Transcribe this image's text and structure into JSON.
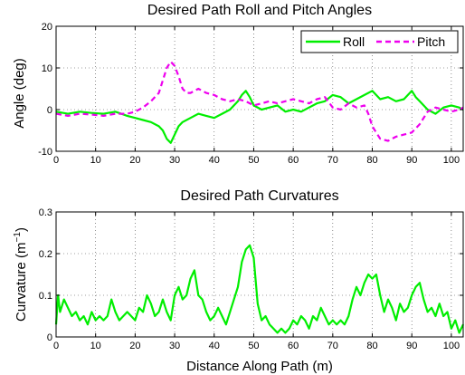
{
  "chart_data": [
    {
      "type": "line",
      "title": "Desired Path Roll and Pitch Angles",
      "xlabel": "",
      "ylabel": "Angle (deg)",
      "xlim": [
        0,
        103
      ],
      "ylim": [
        -10,
        20
      ],
      "xticks": [
        0,
        10,
        20,
        30,
        40,
        50,
        60,
        70,
        80,
        90,
        100
      ],
      "yticks": [
        -10,
        0,
        10,
        20
      ],
      "grid": true,
      "legend": "top-right",
      "series": [
        {
          "name": "Roll",
          "color": "#00ee00",
          "style": "solid",
          "x": [
            0,
            3,
            6,
            9,
            12,
            15,
            18,
            20,
            22,
            24,
            26,
            27,
            28,
            29,
            30,
            31,
            32,
            34,
            36,
            38,
            40,
            42,
            44,
            46,
            47,
            48,
            49,
            50,
            52,
            54,
            56,
            58,
            60,
            62,
            64,
            66,
            68,
            70,
            72,
            74,
            76,
            78,
            80,
            82,
            84,
            86,
            88,
            90,
            91,
            92,
            94,
            96,
            98,
            100,
            102,
            103
          ],
          "y": [
            -0.5,
            -1,
            -0.5,
            -0.8,
            -1,
            -0.5,
            -1.5,
            -2,
            -2.5,
            -3,
            -4,
            -5,
            -7,
            -8,
            -6,
            -4,
            -3,
            -2,
            -1,
            -1.5,
            -2,
            -1,
            0,
            2,
            3.5,
            4.5,
            3,
            1,
            0,
            0.5,
            1,
            -0.5,
            0,
            -0.5,
            0.5,
            1.5,
            2,
            3.5,
            3,
            1.5,
            2.5,
            3.5,
            4.5,
            2.5,
            3,
            2,
            2.5,
            4.5,
            3,
            2,
            0,
            -1,
            0.5,
            1,
            0.5,
            0
          ]
        },
        {
          "name": "Pitch",
          "color": "#ee00ee",
          "style": "dashed",
          "x": [
            0,
            3,
            6,
            9,
            12,
            15,
            18,
            20,
            22,
            24,
            26,
            27,
            28,
            29,
            30,
            31,
            32,
            33,
            34,
            36,
            38,
            40,
            42,
            44,
            46,
            48,
            50,
            52,
            54,
            56,
            58,
            60,
            62,
            64,
            66,
            68,
            70,
            72,
            74,
            76,
            78,
            79,
            80,
            82,
            84,
            86,
            88,
            90,
            92,
            94,
            96,
            98,
            100,
            102,
            103
          ],
          "y": [
            -1,
            -1.5,
            -1,
            -1.2,
            -1.5,
            -1,
            -1,
            -0.5,
            0.5,
            2,
            4,
            7,
            10,
            11.5,
            10.5,
            8,
            5,
            4,
            4,
            5,
            4,
            3.5,
            2.5,
            2,
            2.5,
            2,
            1,
            1.5,
            2,
            1.5,
            2,
            2.5,
            2,
            1.5,
            2.5,
            3,
            0.5,
            0,
            1.5,
            0.5,
            1,
            -1,
            -4,
            -7,
            -7.5,
            -6.5,
            -6,
            -5.5,
            -3.5,
            -0.5,
            0.5,
            0,
            -0.5,
            0,
            0.5
          ]
        }
      ]
    },
    {
      "type": "line",
      "title": "Desired Path Curvatures",
      "xlabel": "Distance Along Path (m)",
      "ylabel_main": "Curvature (m",
      "ylabel_sup": "−1",
      "ylabel_end": ")",
      "xlim": [
        0,
        103
      ],
      "ylim": [
        0,
        0.3
      ],
      "xticks": [
        0,
        10,
        20,
        30,
        40,
        50,
        60,
        70,
        80,
        90,
        100
      ],
      "yticks": [
        0,
        0.1,
        0.2,
        0.3
      ],
      "grid": true,
      "series": [
        {
          "color": "#00ee00",
          "style": "solid",
          "x": [
            0,
            0.5,
            1,
            2,
            3,
            4,
            5,
            6,
            7,
            8,
            9,
            10,
            11,
            12,
            13,
            14,
            15,
            16,
            17,
            18,
            19,
            20,
            21,
            22,
            23,
            24,
            25,
            26,
            27,
            28,
            29,
            30,
            31,
            32,
            33,
            34,
            35,
            36,
            37,
            38,
            39,
            40,
            41,
            42,
            43,
            44,
            45,
            46,
            47,
            48,
            49,
            50,
            51,
            52,
            53,
            54,
            55,
            56,
            57,
            58,
            59,
            60,
            61,
            62,
            63,
            64,
            65,
            66,
            67,
            68,
            69,
            70,
            71,
            72,
            73,
            74,
            75,
            76,
            77,
            78,
            79,
            80,
            81,
            82,
            83,
            84,
            85,
            86,
            87,
            88,
            89,
            90,
            91,
            92,
            93,
            94,
            95,
            96,
            97,
            98,
            99,
            100,
            101,
            102,
            103
          ],
          "y": [
            0.03,
            0.1,
            0.06,
            0.09,
            0.07,
            0.05,
            0.06,
            0.04,
            0.05,
            0.03,
            0.06,
            0.04,
            0.05,
            0.04,
            0.05,
            0.09,
            0.06,
            0.04,
            0.05,
            0.06,
            0.05,
            0.04,
            0.07,
            0.06,
            0.1,
            0.08,
            0.05,
            0.06,
            0.09,
            0.06,
            0.04,
            0.1,
            0.12,
            0.09,
            0.1,
            0.14,
            0.16,
            0.1,
            0.09,
            0.06,
            0.04,
            0.05,
            0.07,
            0.05,
            0.03,
            0.06,
            0.09,
            0.12,
            0.18,
            0.21,
            0.22,
            0.19,
            0.08,
            0.04,
            0.05,
            0.03,
            0.02,
            0.01,
            0.02,
            0.01,
            0.02,
            0.04,
            0.03,
            0.05,
            0.04,
            0.02,
            0.05,
            0.04,
            0.07,
            0.05,
            0.03,
            0.04,
            0.03,
            0.04,
            0.03,
            0.05,
            0.09,
            0.12,
            0.1,
            0.13,
            0.15,
            0.14,
            0.15,
            0.1,
            0.06,
            0.09,
            0.07,
            0.04,
            0.08,
            0.06,
            0.07,
            0.1,
            0.12,
            0.13,
            0.09,
            0.06,
            0.07,
            0.05,
            0.08,
            0.05,
            0.06,
            0.02,
            0.04,
            0.01,
            0.03
          ]
        }
      ]
    }
  ]
}
